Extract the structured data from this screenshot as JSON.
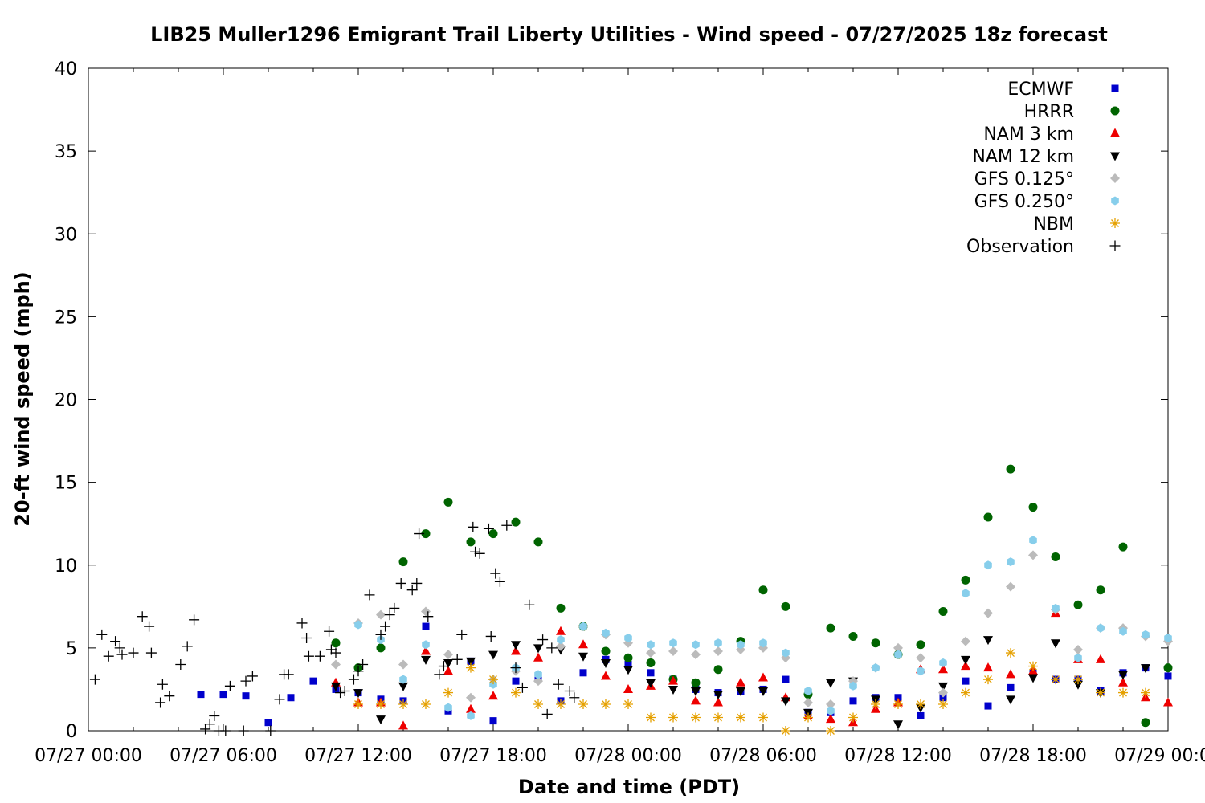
{
  "chart_data": {
    "type": "scatter",
    "title": "LIB25 Muller1296 Emigrant Trail Liberty Utilities - Wind speed - 07/27/2025 18z forecast",
    "xlabel": "Date and time (PDT)",
    "ylabel": "20-ft wind speed (mph)",
    "x_unit": "hours since 07/27 00:00 PDT",
    "xlim": [
      0,
      48
    ],
    "ylim": [
      0,
      40
    ],
    "x_ticks": [
      {
        "x": 0,
        "label": "07/27 00:00"
      },
      {
        "x": 6,
        "label": "07/27 06:00"
      },
      {
        "x": 12,
        "label": "07/27 12:00"
      },
      {
        "x": 18,
        "label": "07/27 18:00"
      },
      {
        "x": 24,
        "label": "07/28 00:00"
      },
      {
        "x": 30,
        "label": "07/28 06:00"
      },
      {
        "x": 36,
        "label": "07/28 12:00"
      },
      {
        "x": 42,
        "label": "07/28 18:00"
      },
      {
        "x": 48,
        "label": "07/29 00:00"
      }
    ],
    "y_ticks": [
      0,
      5,
      10,
      15,
      20,
      25,
      30,
      35,
      40
    ],
    "grid": false,
    "legend_position": "top-right",
    "series": [
      {
        "name": "ECMWF",
        "marker": "square",
        "color": "#0000cc",
        "x": [
          5,
          6,
          7,
          8,
          9,
          10,
          11,
          12,
          13,
          14,
          15,
          16,
          17,
          18,
          19,
          20,
          21,
          22,
          23,
          24,
          25,
          26,
          27,
          28,
          29,
          30,
          31,
          32,
          33,
          34,
          35,
          36,
          37,
          38,
          39,
          40,
          41,
          42,
          43,
          44,
          45,
          46,
          47,
          48
        ],
        "y": [
          2.2,
          2.2,
          2.1,
          0.5,
          2.0,
          3.0,
          2.5,
          2.3,
          1.9,
          1.8,
          6.3,
          1.2,
          4.2,
          0.6,
          3.0,
          3.2,
          1.8,
          3.5,
          4.3,
          4.0,
          3.5,
          3.1,
          2.5,
          2.3,
          2.4,
          2.5,
          3.1,
          1.1,
          1.1,
          1.8,
          2.0,
          2.0,
          0.9,
          2.0,
          3.0,
          1.5,
          2.6,
          3.5,
          3.1,
          3.1,
          2.4,
          3.5,
          3.8,
          3.3
        ]
      },
      {
        "name": "HRRR",
        "marker": "circle",
        "color": "#006400",
        "x": [
          11,
          12,
          13,
          14,
          15,
          16,
          17,
          18,
          19,
          20,
          21,
          22,
          23,
          24,
          25,
          26,
          27,
          28,
          29,
          30,
          31,
          32,
          33,
          34,
          35,
          36,
          37,
          38,
          39,
          40,
          41,
          42,
          43,
          44,
          45,
          46,
          47,
          48
        ],
        "y": [
          5.3,
          3.8,
          5.0,
          10.2,
          11.9,
          13.8,
          11.4,
          11.9,
          12.6,
          11.4,
          7.4,
          6.3,
          4.8,
          4.4,
          4.1,
          3.1,
          2.9,
          3.7,
          5.4,
          8.5,
          7.5,
          2.2,
          6.2,
          5.7,
          5.3,
          4.6,
          5.2,
          7.2,
          9.1,
          12.9,
          15.8,
          13.5,
          10.5,
          7.6,
          8.5,
          11.1,
          0.5,
          3.8
        ]
      },
      {
        "name": "NAM 3 km",
        "marker": "triangle-up",
        "color": "#ee0000",
        "x": [
          11,
          12,
          13,
          14,
          15,
          16,
          17,
          18,
          19,
          20,
          21,
          22,
          23,
          24,
          25,
          26,
          27,
          28,
          29,
          30,
          31,
          32,
          33,
          34,
          35,
          36,
          37,
          38,
          39,
          40,
          41,
          42,
          43,
          44,
          45,
          46,
          47,
          48
        ],
        "y": [
          2.9,
          1.7,
          1.7,
          0.3,
          4.8,
          3.6,
          1.3,
          2.1,
          4.8,
          4.4,
          6.0,
          5.2,
          3.3,
          2.5,
          2.7,
          3.0,
          1.8,
          1.7,
          2.9,
          3.2,
          2.0,
          0.9,
          0.7,
          0.5,
          1.3,
          1.7,
          3.7,
          3.7,
          3.9,
          3.8,
          3.4,
          3.6,
          7.1,
          4.3,
          4.3,
          2.9,
          2.0,
          1.7
        ]
      },
      {
        "name": "NAM 12 km",
        "marker": "triangle-down",
        "color": "#000000",
        "x": [
          11,
          12,
          13,
          14,
          15,
          16,
          17,
          18,
          19,
          20,
          21,
          22,
          23,
          24,
          25,
          26,
          27,
          28,
          29,
          30,
          31,
          32,
          33,
          34,
          35,
          36,
          37,
          38,
          39,
          40,
          41,
          42,
          43,
          44,
          45,
          46,
          47
        ],
        "y": [
          2.7,
          2.3,
          0.7,
          2.7,
          4.3,
          4.1,
          4.2,
          4.6,
          5.2,
          5.0,
          4.9,
          4.5,
          4.1,
          3.7,
          2.9,
          2.5,
          2.4,
          2.2,
          2.4,
          2.4,
          1.8,
          1.1,
          2.9,
          3.0,
          1.9,
          0.4,
          1.4,
          2.7,
          4.3,
          5.5,
          1.9,
          3.2,
          5.3,
          2.8,
          2.3,
          3.4,
          3.8
        ]
      },
      {
        "name": "GFS 0.125°",
        "marker": "diamond",
        "color": "#bbbbbb",
        "x": [
          11,
          12,
          13,
          14,
          15,
          16,
          17,
          18,
          19,
          20,
          21,
          22,
          23,
          24,
          25,
          26,
          27,
          28,
          29,
          30,
          31,
          32,
          33,
          34,
          35,
          36,
          37,
          38,
          39,
          40,
          41,
          42,
          43,
          44,
          45,
          46,
          47,
          48
        ],
        "y": [
          4.0,
          6.5,
          7.0,
          4.0,
          7.2,
          4.6,
          2.0,
          3.1,
          3.6,
          3.0,
          5.1,
          6.3,
          5.8,
          5.3,
          4.7,
          4.8,
          4.6,
          4.8,
          4.9,
          5.0,
          4.4,
          1.7,
          1.6,
          3.0,
          3.8,
          5.0,
          4.4,
          2.3,
          5.4,
          7.1,
          8.7,
          10.6,
          7.3,
          4.9,
          6.2,
          6.2,
          5.7,
          5.4
        ]
      },
      {
        "name": "GFS 0.250°",
        "marker": "hexagon",
        "color": "#87ceeb",
        "x": [
          12,
          13,
          14,
          15,
          16,
          17,
          18,
          19,
          20,
          21,
          22,
          23,
          24,
          25,
          26,
          27,
          28,
          29,
          30,
          31,
          32,
          33,
          34,
          35,
          36,
          37,
          38,
          39,
          40,
          41,
          42,
          43,
          44,
          45,
          46,
          47,
          48
        ],
        "y": [
          6.4,
          5.5,
          3.1,
          5.2,
          1.4,
          0.9,
          2.8,
          3.8,
          3.4,
          5.5,
          6.3,
          5.9,
          5.6,
          5.2,
          5.3,
          5.2,
          5.3,
          5.2,
          5.3,
          4.7,
          2.4,
          1.2,
          2.7,
          3.8,
          4.6,
          3.6,
          4.1,
          8.3,
          10.0,
          10.2,
          11.5,
          7.4,
          4.4,
          6.2,
          6.0,
          5.8,
          5.6
        ]
      },
      {
        "name": "NBM",
        "marker": "asterisk",
        "color": "#e5a000",
        "x": [
          12,
          13,
          14,
          15,
          16,
          17,
          18,
          19,
          20,
          21,
          22,
          23,
          24,
          25,
          26,
          27,
          28,
          29,
          30,
          31,
          32,
          33,
          34,
          35,
          36,
          37,
          38,
          39,
          40,
          41,
          42,
          43,
          44,
          45,
          46,
          47
        ],
        "y": [
          1.6,
          1.6,
          1.6,
          1.6,
          2.3,
          3.8,
          3.1,
          2.3,
          1.6,
          1.6,
          1.6,
          1.6,
          1.6,
          0.8,
          0.8,
          0.8,
          0.8,
          0.8,
          0.8,
          0.0,
          0.8,
          0.0,
          0.8,
          1.6,
          1.6,
          1.6,
          1.6,
          2.3,
          3.1,
          4.7,
          3.9,
          3.1,
          3.1,
          2.3,
          2.3,
          2.3
        ]
      },
      {
        "name": "Observation",
        "marker": "plus",
        "color": "#000000",
        "x": [
          0.3,
          0.6,
          0.9,
          1.2,
          1.4,
          1.5,
          2.0,
          2.4,
          2.7,
          2.8,
          3.2,
          3.3,
          3.6,
          4.1,
          4.4,
          4.7,
          5.2,
          5.4,
          5.6,
          5.8,
          6.1,
          6.3,
          6.9,
          7.0,
          7.3,
          8.1,
          8.5,
          8.7,
          8.9,
          9.5,
          9.7,
          9.8,
          10.3,
          10.7,
          10.8,
          11.0,
          11.2,
          11.4,
          11.8,
          12.0,
          12.2,
          12.5,
          13.0,
          13.2,
          13.4,
          13.6,
          13.9,
          14.4,
          14.6,
          14.7,
          15.1,
          15.6,
          15.8,
          16.4,
          16.6,
          17.1,
          17.2,
          17.4,
          17.8,
          17.9,
          18.1,
          18.3,
          18.6,
          19.0,
          19.3,
          19.6,
          20.2,
          20.4,
          20.6,
          20.9,
          21.4,
          21.6
        ],
        "y": [
          3.1,
          5.8,
          4.5,
          5.4,
          5.0,
          4.6,
          4.7,
          6.9,
          6.3,
          4.7,
          1.7,
          2.8,
          2.1,
          4.0,
          5.1,
          6.7,
          0.1,
          0.4,
          0.9,
          0.0,
          0.0,
          2.7,
          0.0,
          3.0,
          3.3,
          0.0,
          1.9,
          3.4,
          3.4,
          6.5,
          5.6,
          4.5,
          4.5,
          6.0,
          4.9,
          4.7,
          2.3,
          2.4,
          3.1,
          3.6,
          4.0,
          8.2,
          5.8,
          6.3,
          7.0,
          7.4,
          8.9,
          8.5,
          8.9,
          11.9,
          6.9,
          3.4,
          3.9,
          4.3,
          5.8,
          12.3,
          10.8,
          10.7,
          12.2,
          5.7,
          9.5,
          9.0,
          12.4,
          3.8,
          2.6,
          7.6,
          5.5,
          1.0,
          5.0,
          2.8,
          2.4,
          2.0
        ]
      }
    ]
  }
}
